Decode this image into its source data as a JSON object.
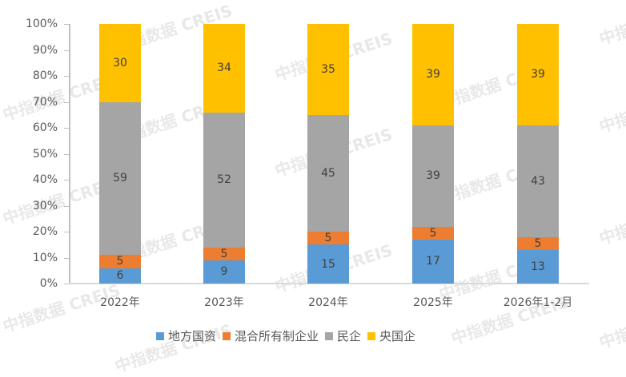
{
  "chart_data": {
    "type": "bar",
    "stacked": true,
    "percent": true,
    "title": "",
    "xlabel": "",
    "ylabel": "",
    "ylim": [
      0,
      100
    ],
    "yticks": [
      "0%",
      "10%",
      "20%",
      "30%",
      "40%",
      "50%",
      "60%",
      "70%",
      "80%",
      "90%",
      "100%"
    ],
    "categories": [
      "2022年",
      "2023年",
      "2024年",
      "2025年",
      "2026年1-2月"
    ],
    "series": [
      {
        "name": "地方国资",
        "color": "#5B9BD5",
        "values": [
          6,
          9,
          15,
          17,
          13
        ]
      },
      {
        "name": "混合所有制企业",
        "color": "#ED7D31",
        "values": [
          5,
          5,
          5,
          5,
          5
        ]
      },
      {
        "name": "民企",
        "color": "#A5A5A5",
        "values": [
          59,
          52,
          45,
          39,
          43
        ]
      },
      {
        "name": "央国企",
        "color": "#FFC000",
        "values": [
          30,
          34,
          35,
          39,
          39
        ]
      }
    ],
    "legend_position": "bottom",
    "grid": false
  },
  "watermark": "中指数据 CREIS"
}
